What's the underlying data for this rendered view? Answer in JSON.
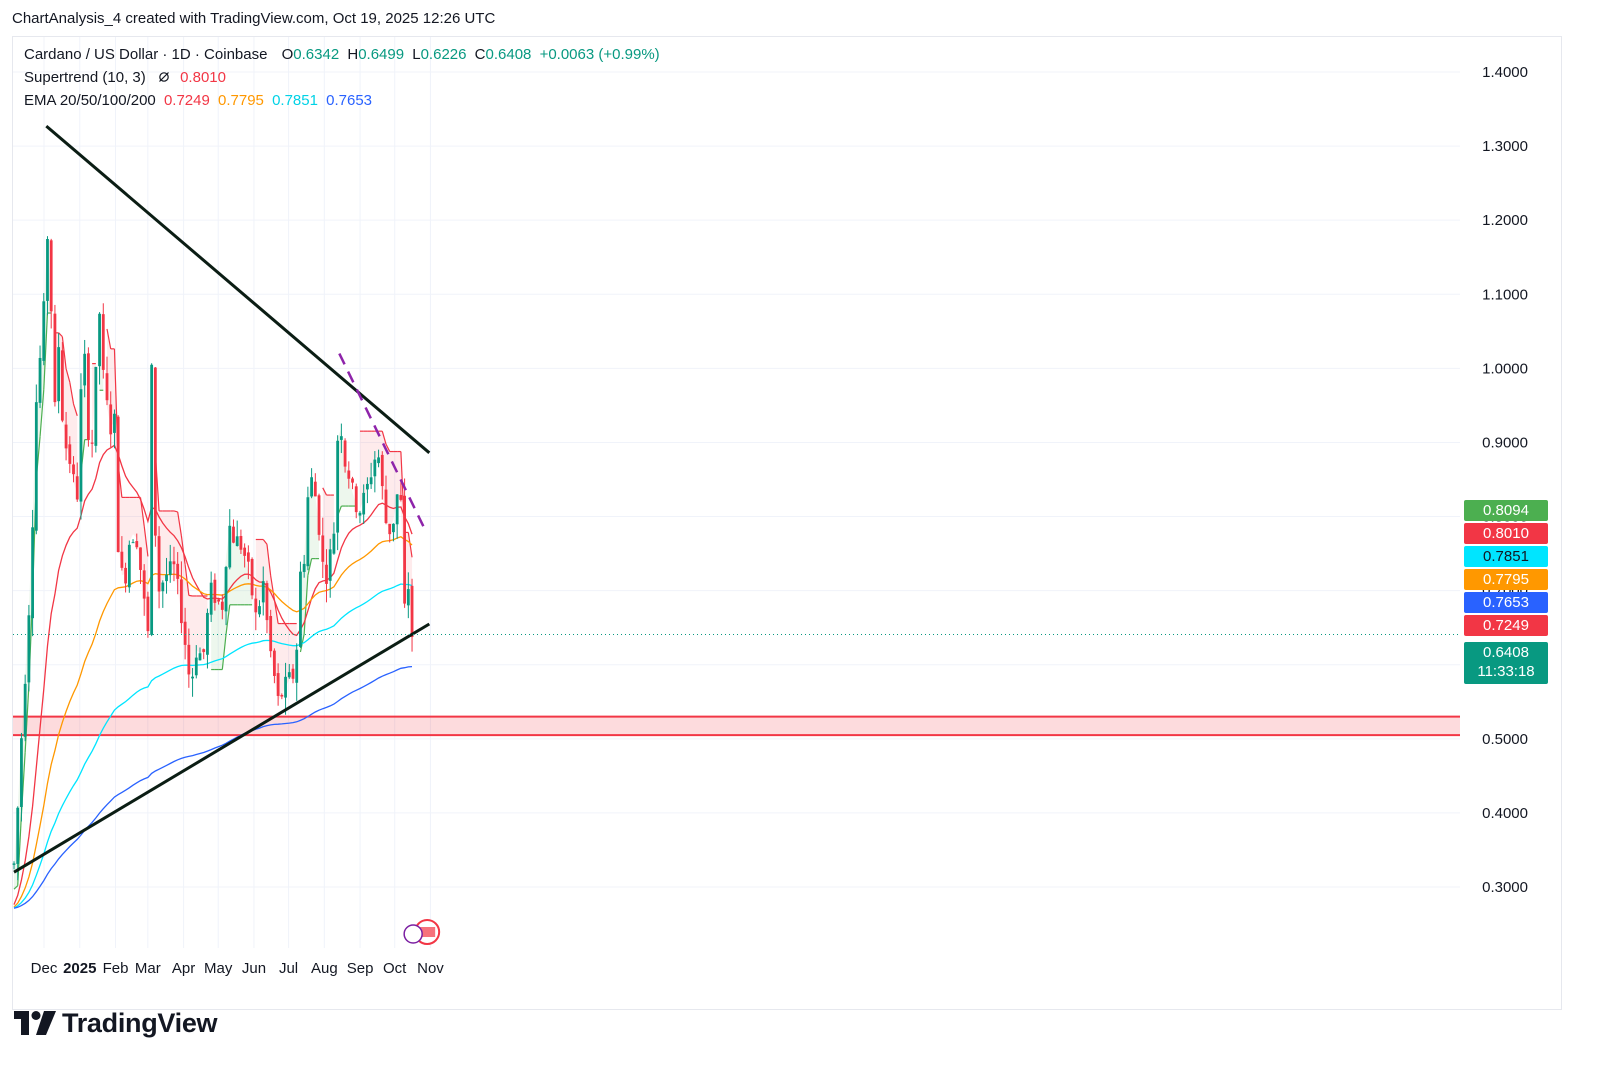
{
  "caption": "ChartAnalysis_4 created with TradingView.com, Oct 19, 2025 12:26 UTC",
  "legend": {
    "symbol": "Cardano / US Dollar · 1D · Coinbase",
    "open_label": "O",
    "open": "0.6342",
    "high_label": "H",
    "high": "0.6499",
    "low_label": "L",
    "low": "0.6226",
    "close_label": "C",
    "close": "0.6408",
    "change": "+0.0063 (+0.99%)",
    "supertrend_label": "Supertrend (10, 3)",
    "supertrend_icon": "eye-slash-icon",
    "supertrend_value": "0.8010",
    "ema_label": "EMA 20/50/100/200",
    "ema20": "0.7249",
    "ema50": "0.7795",
    "ema100": "0.7851",
    "ema200": "0.7653"
  },
  "price_tags": [
    {
      "text": "0.8094",
      "value": 0.8094,
      "color": "#4caf50"
    },
    {
      "text": "0.8010",
      "value": 0.801,
      "color": "#f23645"
    },
    {
      "text": "0.7851",
      "value": 0.7851,
      "color": "#00e5ff"
    },
    {
      "text": "0.7795",
      "value": 0.7795,
      "color": "#ff9800"
    },
    {
      "text": "0.7653",
      "value": 0.7653,
      "color": "#2962ff"
    },
    {
      "text": "0.7249",
      "value": 0.7249,
      "color": "#f23645"
    },
    {
      "text": "0.6408",
      "value": 0.6408,
      "color": "#089981",
      "countdown": "11:33:18"
    }
  ],
  "colors": {
    "up": "#089981",
    "down": "#f23645",
    "ema20": "#f23645",
    "ema50": "#ff9800",
    "ema100": "#00e5ff",
    "ema200": "#2962ff",
    "trend": "#0b1d14",
    "dashed": "#8e24aa",
    "zone": "#f23645"
  },
  "watermark": "TradingView",
  "chart_data": {
    "type": "candlestick",
    "y_ticks": [
      "1.4000",
      "1.3000",
      "1.2000",
      "1.1000",
      "1.0000",
      "0.9000",
      "0.8000",
      "0.7000",
      "0.6000",
      "0.5000",
      "0.4000",
      "0.3000"
    ],
    "x_ticks": [
      "Dec",
      "2025",
      "Feb",
      "Mar",
      "Apr",
      "May",
      "Jun",
      "Jul",
      "Aug",
      "Sep",
      "Oct",
      "Nov"
    ],
    "ylim": [
      0.23,
      1.44
    ],
    "grid": true,
    "last_close": 0.6408,
    "support_zone": [
      0.505,
      0.53
    ],
    "upper_trendline": [
      [
        "2024-12-03",
        1.327
      ],
      [
        "2025-10-31",
        0.886
      ]
    ],
    "lower_trendline": [
      [
        "2024-11-05",
        0.32
      ],
      [
        "2025-10-31",
        0.655
      ]
    ],
    "dashed_trendline": [
      [
        "2025-08-14",
        1.02
      ],
      [
        "2025-10-28",
        0.78
      ]
    ],
    "price_path": [
      [
        "2024-11-05",
        0.33
      ],
      [
        "2024-11-08",
        0.4
      ],
      [
        "2024-11-12",
        0.52
      ],
      [
        "2024-11-16",
        0.62
      ],
      [
        "2024-11-20",
        0.74
      ],
      [
        "2024-11-24",
        0.95
      ],
      [
        "2024-11-28",
        1.02
      ],
      [
        "2024-12-02",
        1.1
      ],
      [
        "2024-12-04",
        1.18
      ],
      [
        "2024-12-06",
        1.15
      ],
      [
        "2024-12-10",
        0.93
      ],
      [
        "2024-12-14",
        1.04
      ],
      [
        "2024-12-18",
        0.9
      ],
      [
        "2024-12-22",
        0.89
      ],
      [
        "2024-12-26",
        0.85
      ],
      [
        "2024-12-30",
        0.83
      ],
      [
        "2025-01-04",
        1.05
      ],
      [
        "2025-01-08",
        0.92
      ],
      [
        "2025-01-12",
        0.9
      ],
      [
        "2025-01-18",
        1.08
      ],
      [
        "2025-01-22",
        0.97
      ],
      [
        "2025-01-28",
        0.92
      ],
      [
        "2025-02-01",
        0.93
      ],
      [
        "2025-02-03",
        0.77
      ],
      [
        "2025-02-08",
        0.7
      ],
      [
        "2025-02-14",
        0.78
      ],
      [
        "2025-02-20",
        0.77
      ],
      [
        "2025-02-26",
        0.68
      ],
      [
        "2025-03-01",
        0.62
      ],
      [
        "2025-03-03",
        1.12
      ],
      [
        "2025-03-06",
        0.83
      ],
      [
        "2025-03-10",
        0.7
      ],
      [
        "2025-03-16",
        0.72
      ],
      [
        "2025-03-24",
        0.73
      ],
      [
        "2025-03-31",
        0.66
      ],
      [
        "2025-04-07",
        0.57
      ],
      [
        "2025-04-12",
        0.62
      ],
      [
        "2025-04-18",
        0.61
      ],
      [
        "2025-04-24",
        0.7
      ],
      [
        "2025-04-30",
        0.69
      ],
      [
        "2025-05-04",
        0.67
      ],
      [
        "2025-05-10",
        0.79
      ],
      [
        "2025-05-15",
        0.77
      ],
      [
        "2025-05-22",
        0.76
      ],
      [
        "2025-05-28",
        0.72
      ],
      [
        "2025-06-03",
        0.66
      ],
      [
        "2025-06-09",
        0.71
      ],
      [
        "2025-06-14",
        0.63
      ],
      [
        "2025-06-19",
        0.58
      ],
      [
        "2025-06-22",
        0.55
      ],
      [
        "2025-06-28",
        0.57
      ],
      [
        "2025-07-02",
        0.58
      ],
      [
        "2025-07-07",
        0.59
      ],
      [
        "2025-07-11",
        0.72
      ],
      [
        "2025-07-15",
        0.75
      ],
      [
        "2025-07-19",
        0.86
      ],
      [
        "2025-07-24",
        0.83
      ],
      [
        "2025-07-28",
        0.78
      ],
      [
        "2025-08-01",
        0.71
      ],
      [
        "2025-08-05",
        0.74
      ],
      [
        "2025-08-09",
        0.77
      ],
      [
        "2025-08-12",
        0.89
      ],
      [
        "2025-08-14",
        0.95
      ],
      [
        "2025-08-18",
        0.88
      ],
      [
        "2025-08-22",
        0.86
      ],
      [
        "2025-08-27",
        0.82
      ],
      [
        "2025-09-01",
        0.81
      ],
      [
        "2025-09-06",
        0.83
      ],
      [
        "2025-09-12",
        0.87
      ],
      [
        "2025-09-16",
        0.89
      ],
      [
        "2025-09-19",
        0.86
      ],
      [
        "2025-09-22",
        0.8
      ],
      [
        "2025-09-26",
        0.78
      ],
      [
        "2025-10-01",
        0.8
      ],
      [
        "2025-10-04",
        0.84
      ],
      [
        "2025-10-08",
        0.8
      ],
      [
        "2025-10-10",
        0.64
      ],
      [
        "2025-10-13",
        0.71
      ],
      [
        "2025-10-16",
        0.64
      ],
      [
        "2025-10-19",
        0.6408
      ]
    ],
    "series": [
      {
        "name": "EMA 20",
        "value": 0.7249
      },
      {
        "name": "EMA 50",
        "value": 0.7795
      },
      {
        "name": "EMA 100",
        "value": 0.7851
      },
      {
        "name": "EMA 200",
        "value": 0.7653
      },
      {
        "name": "Supertrend (10, 3)",
        "value": 0.801
      }
    ]
  }
}
